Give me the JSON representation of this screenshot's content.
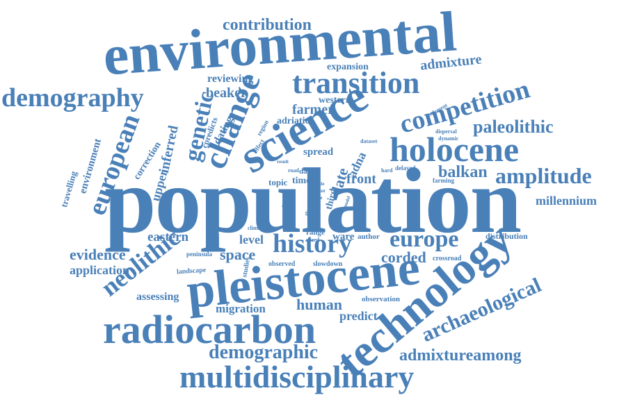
{
  "accent_color": "#4a80b8",
  "words": [
    "population",
    "environmental",
    "pleistocene",
    "science",
    "technology",
    "radiocarbon",
    "multidisciplinary",
    "transition",
    "holocene",
    "change",
    "demography",
    "history",
    "european",
    "neolithic",
    "competition",
    "amplitude",
    "genetic",
    "europe",
    "archaeological",
    "contribution",
    "paleolithic",
    "demographic",
    "admixtureamong",
    "human",
    "evidence",
    "eastern",
    "balkan",
    "admixture",
    "farmer",
    "millennium",
    "application",
    "migration",
    "assessing",
    "corded",
    "space",
    "level",
    "front",
    "predict",
    "beaker",
    "reviewing",
    "inferred",
    "expansion",
    "western",
    "upper",
    "environment",
    "travelling",
    "correction",
    "dating",
    "cpredicts",
    "adriatic",
    "spread",
    "third",
    "late",
    "adna",
    "topic",
    "time",
    "data",
    "ware",
    "author",
    "distribution",
    "crossroad",
    "observed",
    "slowdown",
    "observation",
    "landscape",
    "studies",
    "peninsula",
    "range",
    "speed",
    "climate",
    "farming",
    "settlement",
    "dispersal",
    "dynamic",
    "region",
    "effect",
    "delayed",
    "hard",
    "dataset",
    "result",
    "road",
    "scale",
    "plant",
    "role",
    "record",
    "model",
    "review",
    "glacial",
    "animal",
    "offer"
  ]
}
